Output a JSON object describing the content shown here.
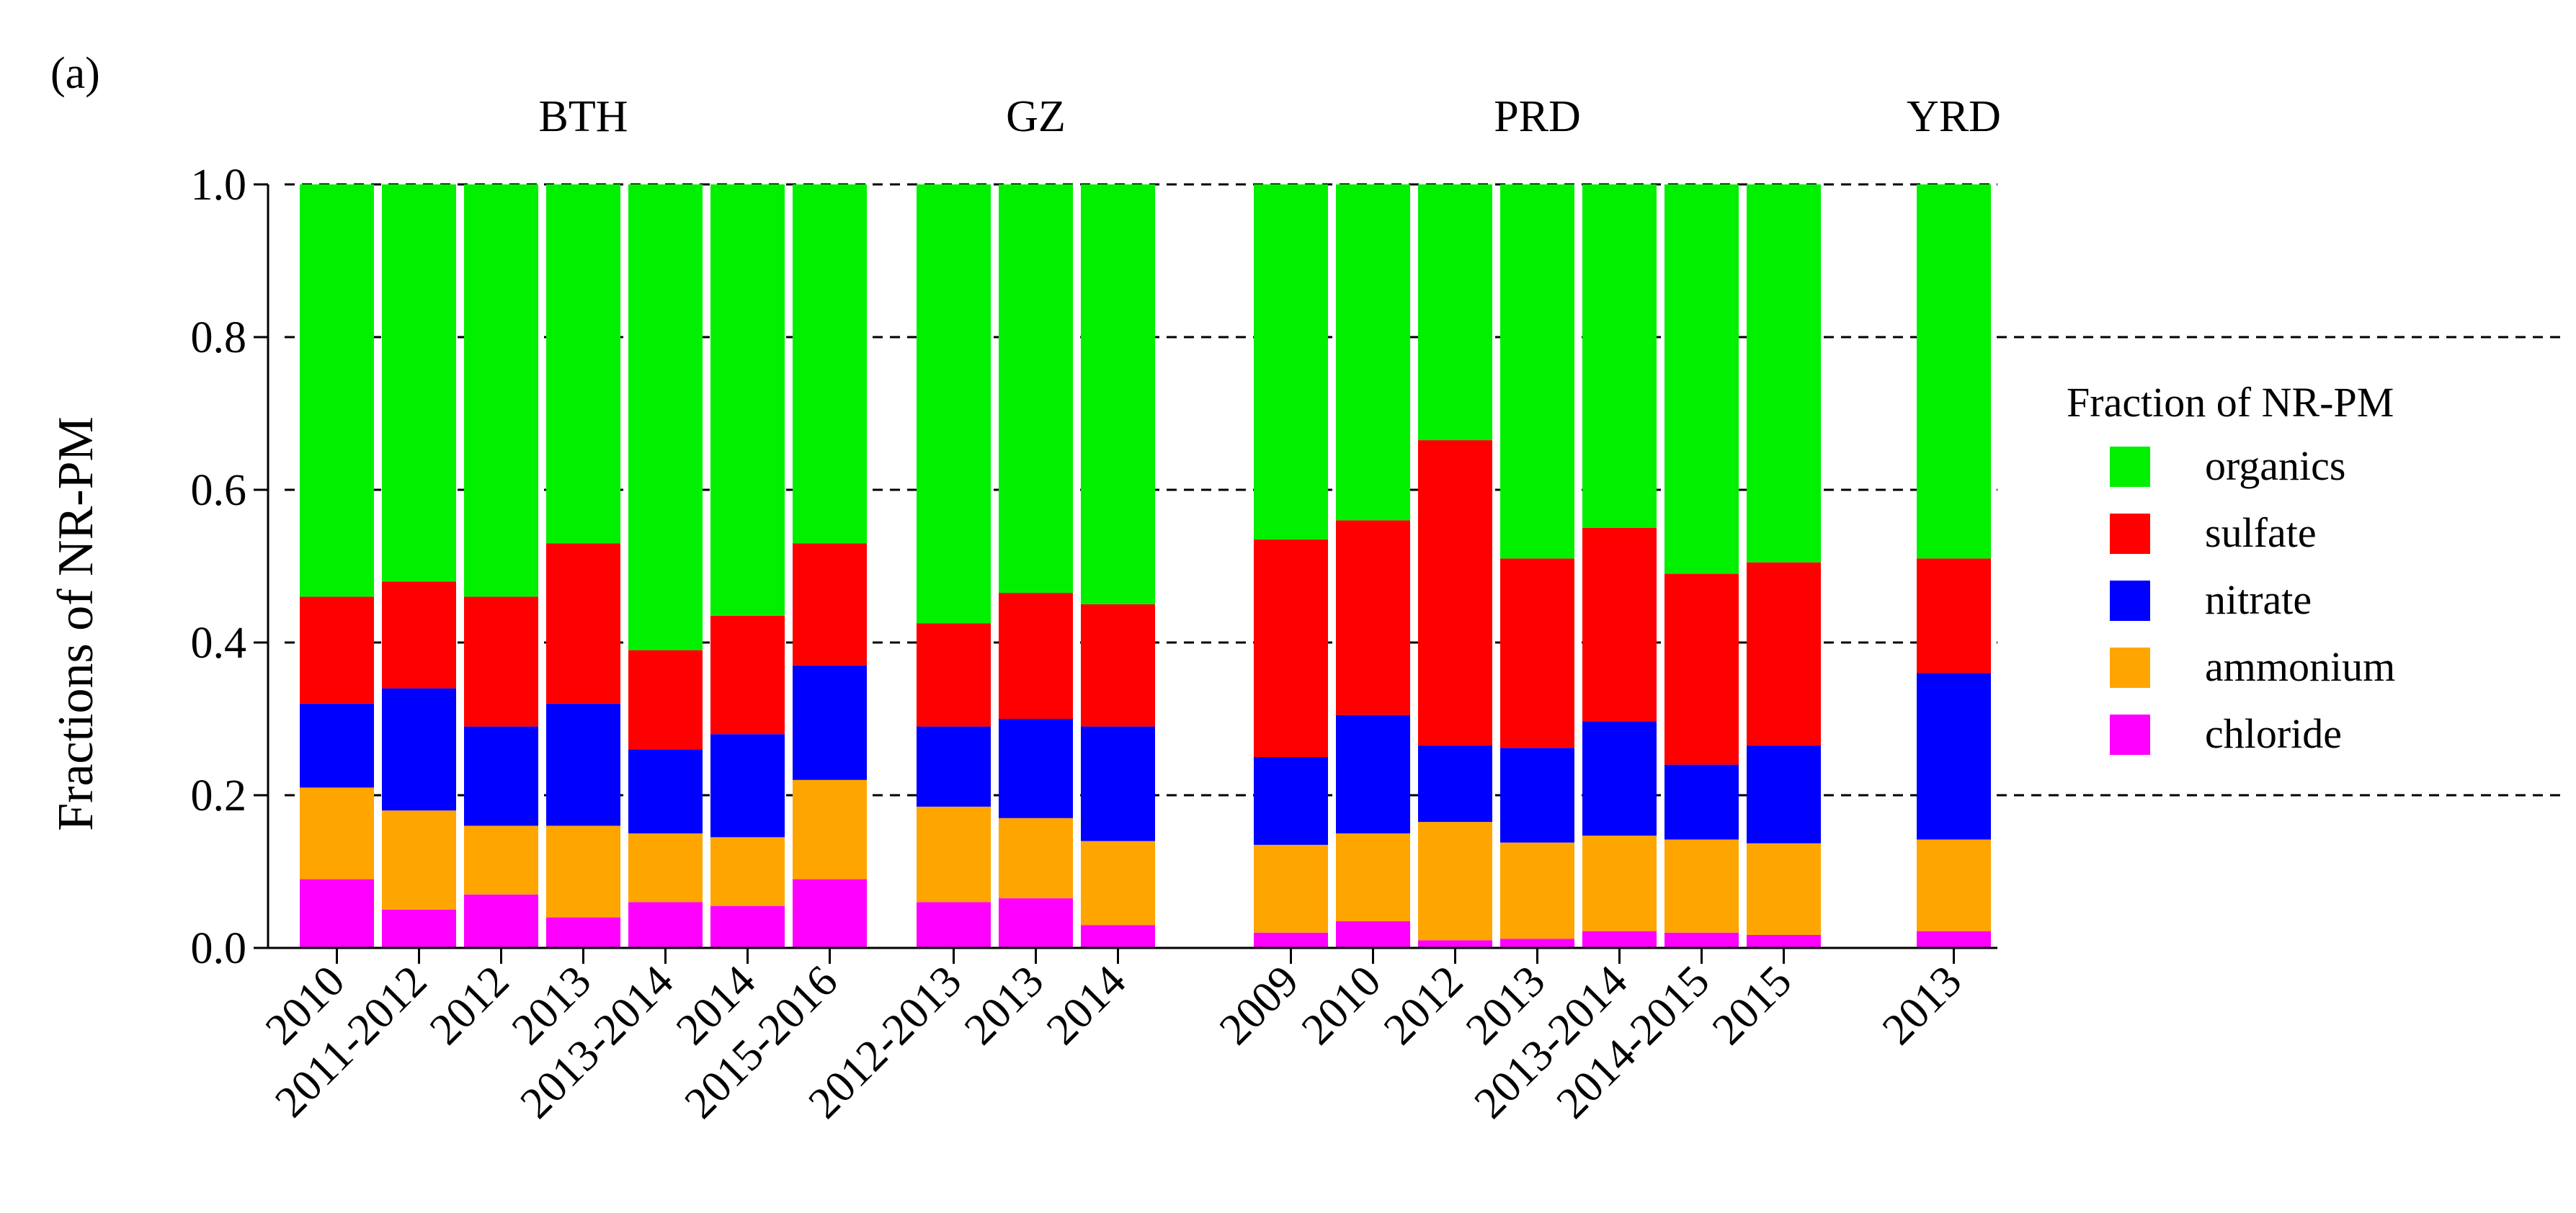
{
  "chart_data": {
    "type": "bar",
    "stacked": true,
    "panel_label": "(a)",
    "ylabel": "Fractions of NR-PM",
    "ylim": [
      0,
      1.0
    ],
    "yticks": [
      "0.0",
      "0.2",
      "0.4",
      "0.6",
      "0.8",
      "1.0"
    ],
    "ytick_values": [
      0,
      0.2,
      0.4,
      0.6,
      0.8,
      1.0
    ],
    "grid": "dashed horizontal at 0.2, 0.4, 0.6, 0.8, 1.0",
    "legend": {
      "title": "Fraction of NR-PM",
      "placement": "right",
      "entries": [
        {
          "name": "organics",
          "color": "#00f000"
        },
        {
          "name": "sulfate",
          "color": "#ff0000"
        },
        {
          "name": "nitrate",
          "color": "#0000ff"
        },
        {
          "name": "ammonium",
          "color": "#ffa500"
        },
        {
          "name": "chloride",
          "color": "#ff00ff"
        }
      ]
    },
    "series_order_bottom_to_top": [
      "chloride",
      "ammonium",
      "nitrate",
      "sulfate",
      "organics"
    ],
    "groups": [
      {
        "name": "BTH",
        "bars": [
          {
            "label": "2010",
            "chloride": 0.09,
            "ammonium": 0.12,
            "nitrate": 0.11,
            "sulfate": 0.14,
            "organics": 0.54
          },
          {
            "label": "2011-2012",
            "chloride": 0.05,
            "ammonium": 0.13,
            "nitrate": 0.16,
            "sulfate": 0.14,
            "organics": 0.52
          },
          {
            "label": "2012",
            "chloride": 0.07,
            "ammonium": 0.09,
            "nitrate": 0.13,
            "sulfate": 0.17,
            "organics": 0.54
          },
          {
            "label": "2013",
            "chloride": 0.04,
            "ammonium": 0.12,
            "nitrate": 0.16,
            "sulfate": 0.21,
            "organics": 0.47
          },
          {
            "label": "2013-2014",
            "chloride": 0.06,
            "ammonium": 0.09,
            "nitrate": 0.11,
            "sulfate": 0.13,
            "organics": 0.61
          },
          {
            "label": "2014",
            "chloride": 0.055,
            "ammonium": 0.09,
            "nitrate": 0.135,
            "sulfate": 0.155,
            "organics": 0.565
          },
          {
            "label": "2015-2016",
            "chloride": 0.09,
            "ammonium": 0.13,
            "nitrate": 0.15,
            "sulfate": 0.16,
            "organics": 0.47
          }
        ]
      },
      {
        "name": "GZ",
        "bars": [
          {
            "label": "2012-2013",
            "chloride": 0.06,
            "ammonium": 0.125,
            "nitrate": 0.105,
            "sulfate": 0.135,
            "organics": 0.575
          },
          {
            "label": "2013",
            "chloride": 0.065,
            "ammonium": 0.105,
            "nitrate": 0.13,
            "sulfate": 0.165,
            "organics": 0.535
          },
          {
            "label": "2014",
            "chloride": 0.03,
            "ammonium": 0.11,
            "nitrate": 0.15,
            "sulfate": 0.16,
            "organics": 0.55
          }
        ]
      },
      {
        "name": "PRD",
        "bars": [
          {
            "label": "2009",
            "chloride": 0.02,
            "ammonium": 0.115,
            "nitrate": 0.115,
            "sulfate": 0.285,
            "organics": 0.465
          },
          {
            "label": "2010",
            "chloride": 0.035,
            "ammonium": 0.115,
            "nitrate": 0.155,
            "sulfate": 0.255,
            "organics": 0.44
          },
          {
            "label": "2012",
            "chloride": 0.01,
            "ammonium": 0.155,
            "nitrate": 0.1,
            "sulfate": 0.4,
            "organics": 0.335
          },
          {
            "label": "2013",
            "chloride": 0.012,
            "ammonium": 0.126,
            "nitrate": 0.124,
            "sulfate": 0.248,
            "organics": 0.49
          },
          {
            "label": "2013-2014",
            "chloride": 0.022,
            "ammonium": 0.125,
            "nitrate": 0.15,
            "sulfate": 0.253,
            "organics": 0.45
          },
          {
            "label": "2014-2015",
            "chloride": 0.02,
            "ammonium": 0.122,
            "nitrate": 0.098,
            "sulfate": 0.25,
            "organics": 0.51
          },
          {
            "label": "2015",
            "chloride": 0.017,
            "ammonium": 0.12,
            "nitrate": 0.128,
            "sulfate": 0.24,
            "organics": 0.495
          }
        ]
      },
      {
        "name": "YRD",
        "bars": [
          {
            "label": "2013",
            "chloride": 0.022,
            "ammonium": 0.12,
            "nitrate": 0.218,
            "sulfate": 0.15,
            "organics": 0.49
          }
        ]
      }
    ]
  }
}
